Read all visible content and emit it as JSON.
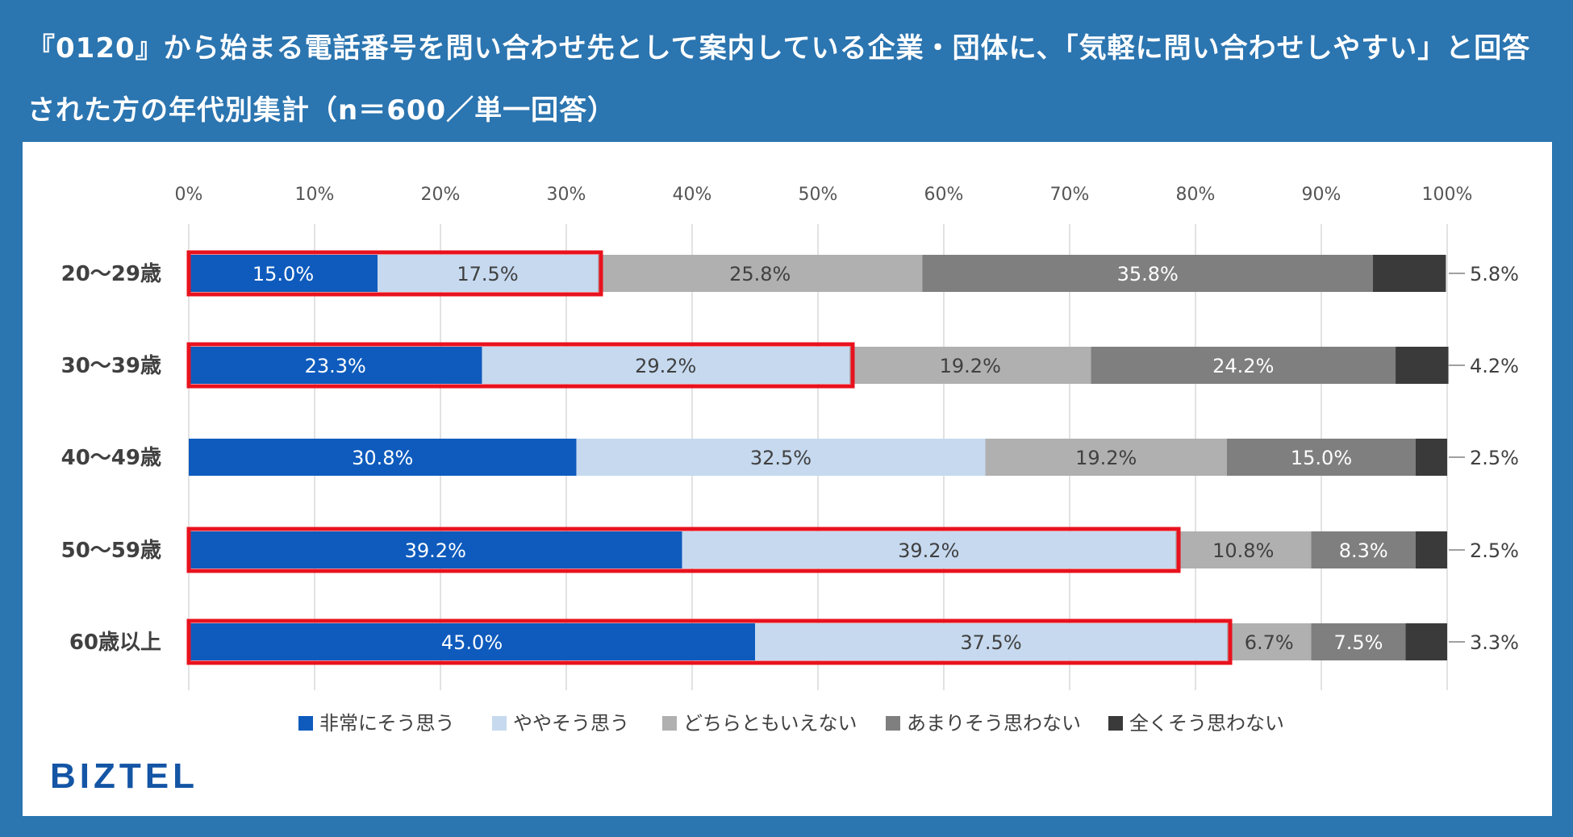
{
  "title": "『0120』から始まる電話番号を問い合わせ先として案内している企業・団体に、「気軽に問い合わせしやすい」と回答された方の年代別集計（n＝600／単一回答）",
  "brand": {
    "logo_text": "BIZTEL"
  },
  "colors": {
    "background": "#2b75b0",
    "series": [
      "#0e5bbd",
      "#c6d9ef",
      "#b0b0b0",
      "#7f7f7f",
      "#3a3a3a"
    ],
    "highlight": "#e8121e",
    "grid": "#d9d9d9"
  },
  "chart_data": {
    "type": "bar",
    "orientation": "horizontal",
    "stacked": true,
    "title": "『0120』から始まる電話番号を問い合わせ先として案内している企業・団体に、「気軽に問い合わせしやすい」と回答された方の年代別集計（n＝600／単一回答）",
    "xlim": [
      0,
      100
    ],
    "x_ticks": [
      "0%",
      "10%",
      "20%",
      "30%",
      "40%",
      "50%",
      "60%",
      "70%",
      "80%",
      "90%",
      "100%"
    ],
    "categories": [
      "20〜29歳",
      "30〜39歳",
      "40〜49歳",
      "50〜59歳",
      "60歳以上"
    ],
    "series": [
      {
        "name": "非常にそう思う",
        "values": [
          15.0,
          23.3,
          30.8,
          39.2,
          45.0
        ]
      },
      {
        "name": "ややそう思う",
        "values": [
          17.5,
          29.2,
          32.5,
          39.2,
          37.5
        ]
      },
      {
        "name": "どちらともいえない",
        "values": [
          25.8,
          19.2,
          19.2,
          10.8,
          6.7
        ]
      },
      {
        "name": "あまりそう思わない",
        "values": [
          35.8,
          24.2,
          15.0,
          8.3,
          7.5
        ]
      },
      {
        "name": "全くそう思わない",
        "values": [
          5.8,
          4.2,
          2.5,
          2.5,
          3.3
        ]
      }
    ],
    "highlighted_rows": [
      0,
      1,
      3,
      4
    ],
    "highlight_series_count": 2,
    "legend_position": "bottom",
    "grid": true
  }
}
